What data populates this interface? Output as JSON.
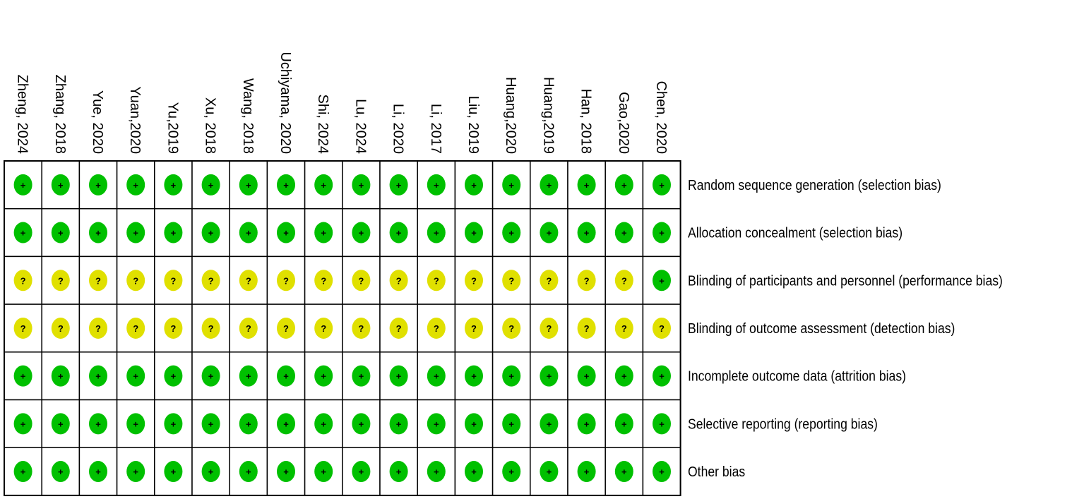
{
  "studies": [
    "Zheng, 2024",
    "Zhang, 2018",
    "Yue, 2020",
    "Yuan,2020",
    "Yu,2019",
    "Xu, 2018",
    "Wang, 2018",
    "Uchiyama, 2020",
    "Shi, 2024",
    "Lu, 2024",
    "Li, 2020",
    "Li, 2017",
    "Liu, 2019",
    "Huang,2020",
    "Huang,2019",
    "Han, 2018",
    "Gao,2020",
    "Chen, 2020"
  ],
  "domains": [
    {
      "label": "Random sequence generation (selection bias)",
      "judgments": [
        "+",
        "+",
        "+",
        "+",
        "+",
        "+",
        "+",
        "+",
        "+",
        "+",
        "+",
        "+",
        "+",
        "+",
        "+",
        "+",
        "+",
        "+"
      ]
    },
    {
      "label": "Allocation concealment (selection bias)",
      "judgments": [
        "+",
        "+",
        "+",
        "+",
        "+",
        "+",
        "+",
        "+",
        "+",
        "+",
        "+",
        "+",
        "+",
        "+",
        "+",
        "+",
        "+",
        "+"
      ]
    },
    {
      "label": "Blinding of participants and personnel (performance bias)",
      "judgments": [
        "?",
        "?",
        "?",
        "?",
        "?",
        "?",
        "?",
        "?",
        "?",
        "?",
        "?",
        "?",
        "?",
        "?",
        "?",
        "?",
        "?",
        "+"
      ]
    },
    {
      "label": "Blinding of outcome assessment (detection bias)",
      "judgments": [
        "?",
        "?",
        "?",
        "?",
        "?",
        "?",
        "?",
        "?",
        "?",
        "?",
        "?",
        "?",
        "?",
        "?",
        "?",
        "?",
        "?",
        "?"
      ]
    },
    {
      "label": "Incomplete outcome data (attrition bias)",
      "judgments": [
        "+",
        "+",
        "+",
        "+",
        "+",
        "+",
        "+",
        "+",
        "+",
        "+",
        "+",
        "+",
        "+",
        "+",
        "+",
        "+",
        "+",
        "+"
      ]
    },
    {
      "label": "Selective reporting (reporting bias)",
      "judgments": [
        "+",
        "+",
        "+",
        "+",
        "+",
        "+",
        "+",
        "+",
        "+",
        "+",
        "+",
        "+",
        "+",
        "+",
        "+",
        "+",
        "+",
        "+"
      ]
    },
    {
      "label": "Other bias",
      "judgments": [
        "+",
        "+",
        "+",
        "+",
        "+",
        "+",
        "+",
        "+",
        "+",
        "+",
        "+",
        "+",
        "+",
        "+",
        "+",
        "+",
        "+",
        "+"
      ]
    }
  ]
}
